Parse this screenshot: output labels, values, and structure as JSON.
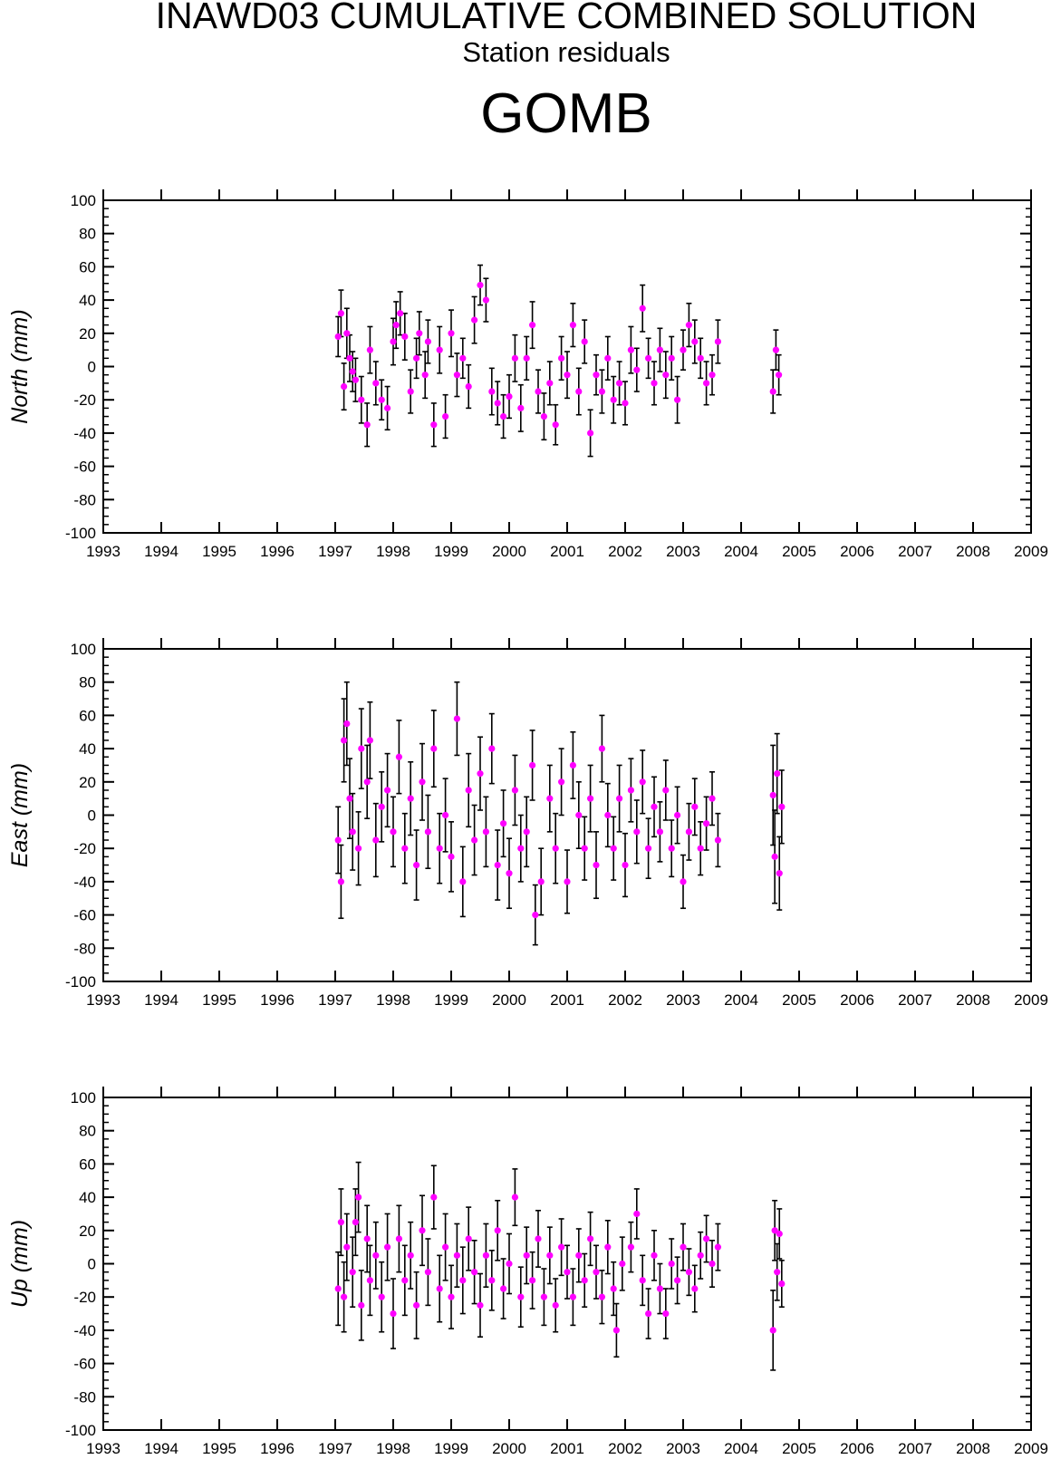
{
  "header": {
    "title": "INAWD03 CUMULATIVE COMBINED SOLUTION",
    "subtitle": "Station residuals",
    "station": "GOMB"
  },
  "colors": {
    "marker": "#ff00ff",
    "errorbar": "#000000",
    "axis": "#000000"
  },
  "chart_data": [
    {
      "type": "scatter",
      "ylabel": "North (mm)",
      "xlim": [
        1993,
        2009
      ],
      "ylim": [
        -100,
        100
      ],
      "xticks": [
        "1993",
        "1994",
        "1995",
        "1996",
        "1997",
        "1998",
        "1999",
        "2000",
        "2001",
        "2002",
        "2003",
        "2004",
        "2005",
        "2006",
        "2007",
        "2008",
        "2009"
      ],
      "yticks": [
        "100",
        "80",
        "60",
        "40",
        "20",
        "0",
        "-20",
        "-40",
        "-60",
        "-80",
        "-100"
      ],
      "error_bars": true,
      "points": [
        [
          1997.05,
          18,
          12
        ],
        [
          1997.1,
          32,
          14
        ],
        [
          1997.15,
          -12,
          14
        ],
        [
          1997.2,
          20,
          15
        ],
        [
          1997.25,
          5,
          14
        ],
        [
          1997.3,
          -3,
          12
        ],
        [
          1997.35,
          -8,
          13
        ],
        [
          1997.45,
          -20,
          14
        ],
        [
          1997.55,
          -35,
          13
        ],
        [
          1997.6,
          10,
          14
        ],
        [
          1997.7,
          -10,
          13
        ],
        [
          1997.8,
          -20,
          12
        ],
        [
          1997.9,
          -25,
          13
        ],
        [
          1998.0,
          15,
          14
        ],
        [
          1998.05,
          25,
          14
        ],
        [
          1998.12,
          32,
          13
        ],
        [
          1998.2,
          18,
          14
        ],
        [
          1998.3,
          -15,
          13
        ],
        [
          1998.4,
          5,
          12
        ],
        [
          1998.45,
          20,
          13
        ],
        [
          1998.55,
          -5,
          14
        ],
        [
          1998.6,
          15,
          13
        ],
        [
          1998.7,
          -35,
          13
        ],
        [
          1998.8,
          10,
          14
        ],
        [
          1998.9,
          -30,
          13
        ],
        [
          1999.0,
          20,
          14
        ],
        [
          1999.1,
          -5,
          13
        ],
        [
          1999.2,
          5,
          12
        ],
        [
          1999.3,
          -12,
          13
        ],
        [
          1999.4,
          28,
          14
        ],
        [
          1999.5,
          49,
          12
        ],
        [
          1999.6,
          40,
          13
        ],
        [
          1999.7,
          -15,
          14
        ],
        [
          1999.8,
          -22,
          13
        ],
        [
          1999.9,
          -30,
          13
        ],
        [
          2000.0,
          -18,
          13
        ],
        [
          2000.1,
          5,
          14
        ],
        [
          2000.2,
          -25,
          14
        ],
        [
          2000.3,
          5,
          13
        ],
        [
          2000.4,
          25,
          14
        ],
        [
          2000.5,
          -15,
          13
        ],
        [
          2000.6,
          -30,
          14
        ],
        [
          2000.7,
          -10,
          13
        ],
        [
          2000.8,
          -35,
          12
        ],
        [
          2000.9,
          5,
          13
        ],
        [
          2001.0,
          -5,
          14
        ],
        [
          2001.1,
          25,
          13
        ],
        [
          2001.2,
          -15,
          14
        ],
        [
          2001.3,
          15,
          13
        ],
        [
          2001.4,
          -40,
          14
        ],
        [
          2001.5,
          -5,
          12
        ],
        [
          2001.6,
          -15,
          13
        ],
        [
          2001.7,
          5,
          13
        ],
        [
          2001.8,
          -20,
          14
        ],
        [
          2001.9,
          -10,
          13
        ],
        [
          2002.0,
          -22,
          13
        ],
        [
          2002.1,
          10,
          14
        ],
        [
          2002.2,
          -2,
          13
        ],
        [
          2002.3,
          35,
          14
        ],
        [
          2002.4,
          5,
          12
        ],
        [
          2002.5,
          -10,
          13
        ],
        [
          2002.6,
          10,
          13
        ],
        [
          2002.7,
          -5,
          14
        ],
        [
          2002.8,
          5,
          13
        ],
        [
          2002.9,
          -20,
          14
        ],
        [
          2003.0,
          10,
          12
        ],
        [
          2003.1,
          25,
          13
        ],
        [
          2003.2,
          15,
          13
        ],
        [
          2003.3,
          5,
          12
        ],
        [
          2003.4,
          -10,
          13
        ],
        [
          2003.5,
          -5,
          12
        ],
        [
          2003.6,
          15,
          13
        ],
        [
          2004.55,
          -15,
          13
        ],
        [
          2004.6,
          10,
          12
        ],
        [
          2004.65,
          -5,
          12
        ]
      ]
    },
    {
      "type": "scatter",
      "ylabel": "East (mm)",
      "xlim": [
        1993,
        2009
      ],
      "ylim": [
        -100,
        100
      ],
      "xticks": [
        "1993",
        "1994",
        "1995",
        "1996",
        "1997",
        "1998",
        "1999",
        "2000",
        "2001",
        "2002",
        "2003",
        "2004",
        "2005",
        "2006",
        "2007",
        "2008",
        "2009"
      ],
      "yticks": [
        "100",
        "80",
        "60",
        "40",
        "20",
        "0",
        "-20",
        "-40",
        "-60",
        "-80",
        "-100"
      ],
      "error_bars": true,
      "points": [
        [
          1997.05,
          -15,
          20
        ],
        [
          1997.1,
          -40,
          22
        ],
        [
          1997.15,
          45,
          25
        ],
        [
          1997.2,
          55,
          25
        ],
        [
          1997.25,
          10,
          24
        ],
        [
          1997.3,
          -10,
          23
        ],
        [
          1997.4,
          -20,
          22
        ],
        [
          1997.45,
          40,
          24
        ],
        [
          1997.55,
          20,
          22
        ],
        [
          1997.6,
          45,
          23
        ],
        [
          1997.7,
          -15,
          22
        ],
        [
          1997.8,
          5,
          21
        ],
        [
          1997.9,
          15,
          22
        ],
        [
          1998.0,
          -10,
          21
        ],
        [
          1998.1,
          35,
          22
        ],
        [
          1998.2,
          -20,
          21
        ],
        [
          1998.3,
          10,
          22
        ],
        [
          1998.4,
          -30,
          21
        ],
        [
          1998.5,
          20,
          23
        ],
        [
          1998.6,
          -10,
          22
        ],
        [
          1998.7,
          40,
          23
        ],
        [
          1998.8,
          -20,
          21
        ],
        [
          1998.9,
          0,
          22
        ],
        [
          1999.0,
          -25,
          21
        ],
        [
          1999.1,
          58,
          22
        ],
        [
          1999.2,
          -40,
          21
        ],
        [
          1999.3,
          15,
          22
        ],
        [
          1999.4,
          -15,
          21
        ],
        [
          1999.5,
          25,
          22
        ],
        [
          1999.6,
          -10,
          21
        ],
        [
          1999.7,
          40,
          21
        ],
        [
          1999.8,
          -30,
          21
        ],
        [
          1999.9,
          -5,
          20
        ],
        [
          2000.0,
          -35,
          21
        ],
        [
          2000.1,
          15,
          21
        ],
        [
          2000.2,
          -20,
          20
        ],
        [
          2000.3,
          -10,
          21
        ],
        [
          2000.4,
          30,
          21
        ],
        [
          2000.45,
          -60,
          18
        ],
        [
          2000.55,
          -40,
          20
        ],
        [
          2000.7,
          10,
          20
        ],
        [
          2000.8,
          -20,
          21
        ],
        [
          2000.9,
          20,
          20
        ],
        [
          2001.0,
          -40,
          19
        ],
        [
          2001.1,
          30,
          20
        ],
        [
          2001.2,
          0,
          20
        ],
        [
          2001.3,
          -20,
          19
        ],
        [
          2001.4,
          10,
          20
        ],
        [
          2001.5,
          -30,
          20
        ],
        [
          2001.6,
          40,
          20
        ],
        [
          2001.7,
          0,
          19
        ],
        [
          2001.8,
          -20,
          19
        ],
        [
          2001.9,
          10,
          20
        ],
        [
          2002.0,
          -30,
          19
        ],
        [
          2002.1,
          15,
          19
        ],
        [
          2002.2,
          -10,
          19
        ],
        [
          2002.3,
          20,
          19
        ],
        [
          2002.4,
          -20,
          18
        ],
        [
          2002.5,
          5,
          18
        ],
        [
          2002.6,
          -10,
          18
        ],
        [
          2002.7,
          15,
          18
        ],
        [
          2002.8,
          -20,
          17
        ],
        [
          2002.9,
          0,
          17
        ],
        [
          2003.0,
          -40,
          16
        ],
        [
          2003.1,
          -10,
          17
        ],
        [
          2003.2,
          5,
          17
        ],
        [
          2003.3,
          -20,
          16
        ],
        [
          2003.4,
          -5,
          16
        ],
        [
          2003.5,
          10,
          16
        ],
        [
          2003.6,
          -15,
          16
        ],
        [
          2004.55,
          12,
          30
        ],
        [
          2004.58,
          -25,
          28
        ],
        [
          2004.62,
          25,
          24
        ],
        [
          2004.66,
          -35,
          22
        ],
        [
          2004.7,
          5,
          22
        ]
      ]
    },
    {
      "type": "scatter",
      "ylabel": "Up (mm)",
      "xlim": [
        1993,
        2009
      ],
      "ylim": [
        -100,
        100
      ],
      "xticks": [
        "1993",
        "1994",
        "1995",
        "1996",
        "1997",
        "1998",
        "1999",
        "2000",
        "2001",
        "2002",
        "2003",
        "2004",
        "2005",
        "2006",
        "2007",
        "2008",
        "2009"
      ],
      "yticks": [
        "100",
        "80",
        "60",
        "40",
        "20",
        "0",
        "-20",
        "-40",
        "-60",
        "-80",
        "-100"
      ],
      "error_bars": true,
      "points": [
        [
          1997.05,
          -15,
          22
        ],
        [
          1997.1,
          25,
          20
        ],
        [
          1997.15,
          -20,
          21
        ],
        [
          1997.2,
          10,
          20
        ],
        [
          1997.3,
          -5,
          21
        ],
        [
          1997.35,
          25,
          20
        ],
        [
          1997.4,
          40,
          21
        ],
        [
          1997.45,
          -25,
          21
        ],
        [
          1997.55,
          15,
          20
        ],
        [
          1997.6,
          -10,
          21
        ],
        [
          1997.7,
          5,
          20
        ],
        [
          1997.8,
          -20,
          21
        ],
        [
          1997.9,
          10,
          20
        ],
        [
          1998.0,
          -30,
          21
        ],
        [
          1998.1,
          15,
          20
        ],
        [
          1998.2,
          -10,
          21
        ],
        [
          1998.3,
          5,
          20
        ],
        [
          1998.4,
          -25,
          20
        ],
        [
          1998.5,
          20,
          21
        ],
        [
          1998.6,
          -5,
          20
        ],
        [
          1998.7,
          40,
          19
        ],
        [
          1998.8,
          -15,
          20
        ],
        [
          1998.9,
          10,
          20
        ],
        [
          1999.0,
          -20,
          19
        ],
        [
          1999.1,
          5,
          19
        ],
        [
          1999.2,
          -10,
          20
        ],
        [
          1999.3,
          15,
          19
        ],
        [
          1999.4,
          -5,
          19
        ],
        [
          1999.5,
          -25,
          19
        ],
        [
          1999.6,
          5,
          19
        ],
        [
          1999.7,
          -10,
          18
        ],
        [
          1999.8,
          20,
          18
        ],
        [
          1999.9,
          -15,
          18
        ],
        [
          2000.0,
          0,
          18
        ],
        [
          2000.1,
          40,
          17
        ],
        [
          2000.2,
          -20,
          18
        ],
        [
          2000.3,
          5,
          17
        ],
        [
          2000.4,
          -10,
          17
        ],
        [
          2000.5,
          15,
          17
        ],
        [
          2000.6,
          -20,
          17
        ],
        [
          2000.7,
          5,
          17
        ],
        [
          2000.8,
          -25,
          16
        ],
        [
          2000.9,
          10,
          17
        ],
        [
          2001.0,
          -5,
          16
        ],
        [
          2001.1,
          -20,
          17
        ],
        [
          2001.2,
          5,
          16
        ],
        [
          2001.3,
          -10,
          16
        ],
        [
          2001.4,
          15,
          16
        ],
        [
          2001.5,
          -5,
          16
        ],
        [
          2001.6,
          -20,
          16
        ],
        [
          2001.7,
          10,
          16
        ],
        [
          2001.8,
          -15,
          16
        ],
        [
          2001.85,
          -40,
          16
        ],
        [
          2001.95,
          0,
          16
        ],
        [
          2002.1,
          10,
          15
        ],
        [
          2002.2,
          30,
          15
        ],
        [
          2002.3,
          -10,
          15
        ],
        [
          2002.4,
          -30,
          15
        ],
        [
          2002.5,
          5,
          15
        ],
        [
          2002.6,
          -15,
          15
        ],
        [
          2002.7,
          -30,
          15
        ],
        [
          2002.8,
          0,
          15
        ],
        [
          2002.9,
          -10,
          14
        ],
        [
          2003.0,
          10,
          14
        ],
        [
          2003.1,
          -5,
          14
        ],
        [
          2003.2,
          -15,
          14
        ],
        [
          2003.3,
          5,
          14
        ],
        [
          2003.4,
          15,
          14
        ],
        [
          2003.5,
          0,
          14
        ],
        [
          2003.6,
          10,
          14
        ],
        [
          2004.55,
          -40,
          24
        ],
        [
          2004.58,
          20,
          18
        ],
        [
          2004.62,
          -5,
          17
        ],
        [
          2004.66,
          18,
          15
        ],
        [
          2004.7,
          -12,
          14
        ]
      ]
    }
  ]
}
